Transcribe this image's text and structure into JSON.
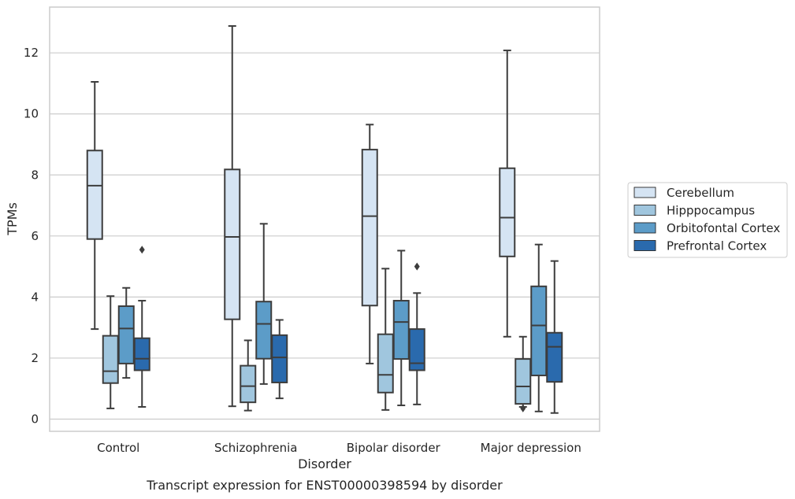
{
  "chart_data": {
    "type": "boxplot",
    "xlabel": "Disorder",
    "ylabel": "TPMs",
    "caption": "Transcript expression for ENST00000398594 by disorder",
    "ylim": [
      -0.4,
      13.5
    ],
    "yticks": [
      0,
      2,
      4,
      6,
      8,
      10,
      12
    ],
    "grid": "horizontal",
    "legend_placement": "right",
    "categories": [
      "Control",
      "Schizophrenia",
      "Bipolar disorder",
      "Major depression"
    ],
    "series": [
      {
        "name": "Cerebellum",
        "color": "#d5e4f3",
        "boxes": [
          {
            "whisker_low": 2.95,
            "q1": 5.9,
            "median": 7.65,
            "q3": 8.8,
            "whisker_high": 11.05,
            "outliers": []
          },
          {
            "whisker_low": 0.42,
            "q1": 3.27,
            "median": 5.97,
            "q3": 8.18,
            "whisker_high": 12.88,
            "outliers": []
          },
          {
            "whisker_low": 1.82,
            "q1": 3.72,
            "median": 6.65,
            "q3": 8.83,
            "whisker_high": 9.65,
            "outliers": []
          },
          {
            "whisker_low": 2.7,
            "q1": 5.33,
            "median": 6.6,
            "q3": 8.22,
            "whisker_high": 12.08,
            "outliers": []
          }
        ]
      },
      {
        "name": "Hipppocampus",
        "color": "#a0c6de",
        "boxes": [
          {
            "whisker_low": 0.35,
            "q1": 1.18,
            "median": 1.57,
            "q3": 2.73,
            "whisker_high": 4.03,
            "outliers": []
          },
          {
            "whisker_low": 0.28,
            "q1": 0.55,
            "median": 1.08,
            "q3": 1.75,
            "whisker_high": 2.58,
            "outliers": []
          },
          {
            "whisker_low": 0.3,
            "q1": 0.87,
            "median": 1.45,
            "q3": 2.78,
            "whisker_high": 4.93,
            "outliers": []
          },
          {
            "whisker_low": 0.4,
            "q1": 0.5,
            "median": 1.07,
            "q3": 1.97,
            "whisker_high": 2.7,
            "outliers": [
              0.35
            ]
          }
        ]
      },
      {
        "name": "Orbitofontal Cortex",
        "color": "#5c9cc8",
        "boxes": [
          {
            "whisker_low": 1.35,
            "q1": 1.82,
            "median": 2.97,
            "q3": 3.7,
            "whisker_high": 4.3,
            "outliers": []
          },
          {
            "whisker_low": 1.15,
            "q1": 1.98,
            "median": 3.12,
            "q3": 3.85,
            "whisker_high": 6.4,
            "outliers": []
          },
          {
            "whisker_low": 0.45,
            "q1": 1.97,
            "median": 3.18,
            "q3": 3.88,
            "whisker_high": 5.52,
            "outliers": []
          },
          {
            "whisker_low": 0.25,
            "q1": 1.43,
            "median": 3.07,
            "q3": 4.35,
            "whisker_high": 5.72,
            "outliers": []
          }
        ]
      },
      {
        "name": "Prefrontal Cortex",
        "color": "#2a6aad",
        "boxes": [
          {
            "whisker_low": 0.4,
            "q1": 1.6,
            "median": 1.98,
            "q3": 2.65,
            "whisker_high": 3.88,
            "outliers": [
              5.55
            ]
          },
          {
            "whisker_low": 0.68,
            "q1": 1.2,
            "median": 2.02,
            "q3": 2.75,
            "whisker_high": 3.25,
            "outliers": []
          },
          {
            "whisker_low": 0.48,
            "q1": 1.6,
            "median": 1.83,
            "q3": 2.95,
            "whisker_high": 4.13,
            "outliers": [
              5.0
            ]
          },
          {
            "whisker_low": 0.2,
            "q1": 1.22,
            "median": 2.37,
            "q3": 2.83,
            "whisker_high": 5.18,
            "outliers": []
          }
        ]
      }
    ]
  }
}
